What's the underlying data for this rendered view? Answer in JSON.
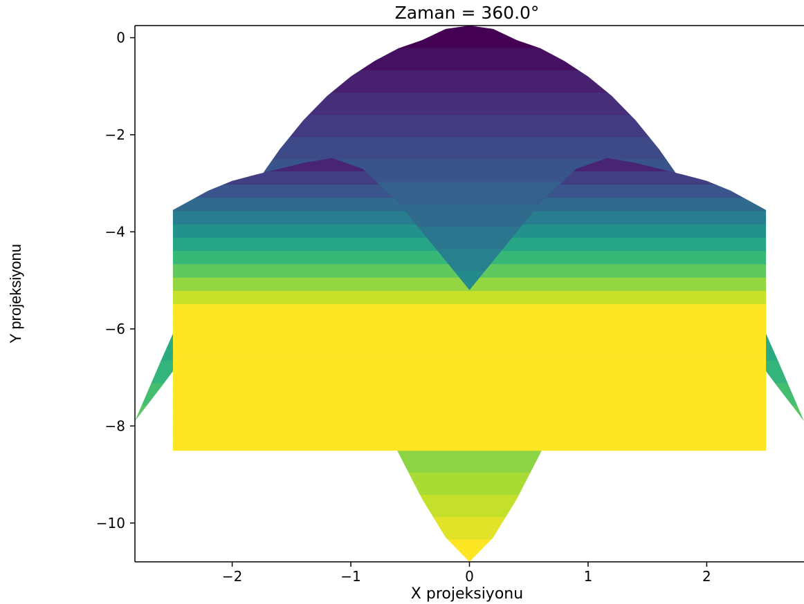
{
  "chart_data": {
    "type": "area",
    "title": "Zaman = 360.0°",
    "xlabel": "X projeksiyonu",
    "ylabel": "Y projeksiyonu",
    "xlim": [
      -2.82,
      2.82
    ],
    "ylim": [
      -10.8,
      0.25
    ],
    "xticks": [
      -2,
      -1,
      0,
      1,
      2
    ],
    "yticks": [
      0,
      -2,
      -4,
      -6,
      -8,
      -10
    ],
    "colormap": "viridis",
    "band_count": 24,
    "grid": false,
    "series": [
      {
        "x": [
          -2.82,
          -2.6,
          -2.4,
          -2.2,
          -2.0,
          -1.8,
          -1.6,
          -1.4,
          -1.2,
          -1.0,
          -0.8,
          -0.6,
          -0.4,
          -0.2,
          0.0,
          0.2,
          0.4,
          0.6,
          0.8,
          1.0,
          1.2,
          1.4,
          1.6,
          1.8,
          2.0,
          2.2,
          2.4,
          2.6,
          2.82
        ],
        "upper": [
          -7.9,
          -6.65,
          -5.55,
          -4.6,
          -3.75,
          -3.0,
          -2.3,
          -1.7,
          -1.2,
          -0.8,
          -0.48,
          -0.22,
          -0.05,
          0.18,
          0.25,
          0.18,
          -0.05,
          -0.22,
          -0.48,
          -0.8,
          -1.2,
          -1.7,
          -2.3,
          -3.0,
          -3.75,
          -4.6,
          -5.55,
          -6.65,
          -7.9
        ],
        "lower": [
          -7.9,
          -7.2,
          -6.55,
          -5.95,
          -5.55,
          -5.35,
          -5.32,
          -5.5,
          -5.95,
          -6.7,
          -7.6,
          -8.55,
          -9.5,
          -10.3,
          -10.8,
          -10.3,
          -9.5,
          -8.55,
          -7.6,
          -6.7,
          -5.95,
          -5.5,
          -5.32,
          -5.35,
          -5.55,
          -5.95,
          -6.55,
          -7.2,
          -7.9
        ]
      },
      {
        "x": [
          -2.5,
          -2.2,
          -2.0,
          -1.8,
          -1.6,
          -1.4,
          -1.16,
          -0.9,
          -0.6,
          -0.3,
          0.0,
          0.3,
          0.6,
          0.9,
          1.16,
          1.4,
          1.6,
          1.8,
          2.0,
          2.2,
          2.5
        ],
        "upper": [
          -3.55,
          -3.15,
          -2.95,
          -2.82,
          -2.7,
          -2.58,
          -2.48,
          -2.7,
          -3.4,
          -4.3,
          -5.2,
          -4.3,
          -3.4,
          -2.7,
          -2.48,
          -2.58,
          -2.7,
          -2.82,
          -2.95,
          -3.15,
          -3.55
        ]
      }
    ]
  }
}
